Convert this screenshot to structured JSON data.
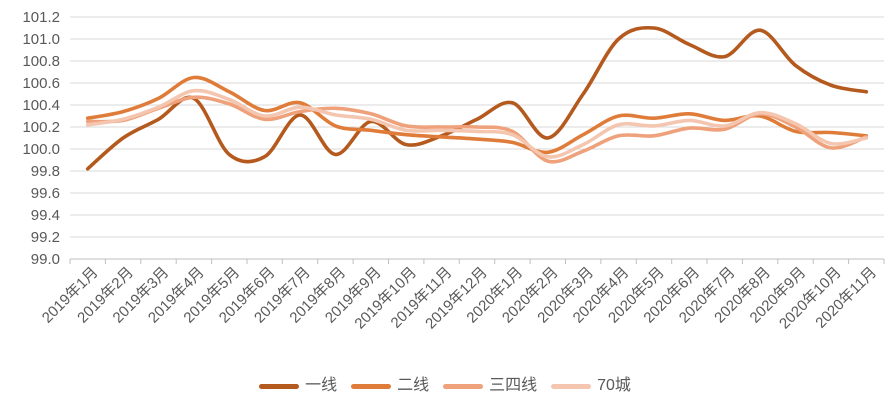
{
  "chart_data": {
    "type": "line",
    "title": "",
    "smooth": true,
    "grid": true,
    "legend_position": "bottom",
    "y_axis": {
      "min": 99.0,
      "max": 101.2,
      "step": 0.2,
      "tick_labels": [
        "99.0",
        "99.2",
        "99.4",
        "99.6",
        "99.8",
        "100.0",
        "100.2",
        "100.4",
        "100.6",
        "100.8",
        "101.0",
        "101.2"
      ]
    },
    "categories": [
      "2019年1月",
      "2019年2月",
      "2019年3月",
      "2019年4月",
      "2019年5月",
      "2019年6月",
      "2019年7月",
      "2019年8月",
      "2019年9月",
      "2019年10月",
      "2019年11月",
      "2019年12月",
      "2020年1月",
      "2020年2月",
      "2020年3月",
      "2020年4月",
      "2020年5月",
      "2020年6月",
      "2020年7月",
      "2020年8月",
      "2020年9月",
      "2020年10月",
      "2020年11月"
    ],
    "series": [
      {
        "key": "tier1",
        "name": "一线",
        "color": "#B45A1E",
        "values": [
          99.82,
          100.1,
          100.27,
          100.46,
          99.95,
          99.93,
          100.31,
          99.95,
          100.25,
          100.04,
          100.12,
          100.27,
          100.42,
          100.1,
          100.5,
          101.0,
          101.1,
          100.95,
          100.84,
          101.08,
          100.76,
          100.58,
          100.52
        ]
      },
      {
        "key": "tier2",
        "name": "二线",
        "color": "#E07C3A",
        "values": [
          100.28,
          100.34,
          100.46,
          100.65,
          100.52,
          100.35,
          100.42,
          100.21,
          100.17,
          100.13,
          100.11,
          100.09,
          100.06,
          99.97,
          100.13,
          100.3,
          100.28,
          100.32,
          100.26,
          100.3,
          100.16,
          100.15,
          100.12
        ]
      },
      {
        "key": "tier34",
        "name": "三四线",
        "color": "#EEA17A",
        "values": [
          100.25,
          100.26,
          100.37,
          100.47,
          100.41,
          100.27,
          100.34,
          100.37,
          100.32,
          100.21,
          100.2,
          100.2,
          100.16,
          99.89,
          99.98,
          100.12,
          100.12,
          100.19,
          100.18,
          100.32,
          100.2,
          100.01,
          100.11
        ]
      },
      {
        "key": "city70",
        "name": "70城",
        "color": "#F4C6B0",
        "values": [
          100.22,
          100.27,
          100.38,
          100.53,
          100.45,
          100.3,
          100.38,
          100.31,
          100.27,
          100.17,
          100.17,
          100.16,
          100.13,
          99.93,
          100.04,
          100.22,
          100.21,
          100.26,
          100.21,
          100.33,
          100.23,
          100.05,
          100.1
        ]
      }
    ]
  },
  "colors": {
    "axis_text": "#595959",
    "gridline": "#D9D9D9",
    "axis_line": "#BFBFBF",
    "background": "#FFFFFF"
  }
}
